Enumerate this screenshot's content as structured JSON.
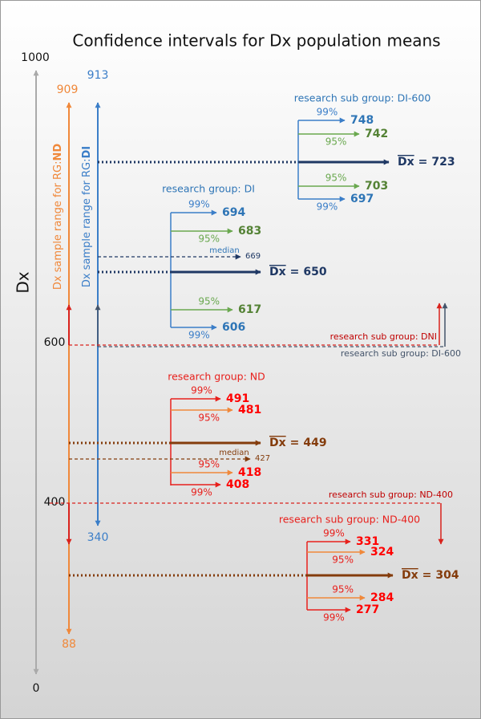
{
  "title": "Confidence intervals for Dx population means",
  "axis": {
    "label": "Dx",
    "ticks": [
      1000,
      600,
      400,
      0
    ]
  },
  "sample_ranges": [
    {
      "label": "Dx  sample range for RG:",
      "group": "ND",
      "max": 909,
      "min": 88
    },
    {
      "label": "Dx  sample range for RG:",
      "group": "DI",
      "max": 913,
      "min": 340
    }
  ],
  "mean_symbol": "Dx",
  "equals": "=",
  "median_label": "median",
  "groups": [
    {
      "title": "research sub group: DI-600",
      "mean": 723,
      "intervals": [
        {
          "level": "99%",
          "upper": 748,
          "lower": 697
        },
        {
          "level": "95%",
          "upper": 742,
          "lower": 703
        }
      ]
    },
    {
      "title": "research group: DI",
      "mean": 650,
      "median": 669,
      "intervals": [
        {
          "level": "99%",
          "upper": 694,
          "lower": 606
        },
        {
          "level": "95%",
          "upper": 683,
          "lower": 617
        }
      ]
    },
    {
      "title": "research group: ND",
      "mean": 449,
      "median": 427,
      "intervals": [
        {
          "level": "99%",
          "upper": 491,
          "lower": 408
        },
        {
          "level": "95%",
          "upper": 481,
          "lower": 418
        }
      ]
    },
    {
      "title": "research sub group: ND-400",
      "mean": 304,
      "intervals": [
        {
          "level": "99%",
          "upper": 331,
          "lower": 277
        },
        {
          "level": "95%",
          "upper": 324,
          "lower": 284
        }
      ]
    }
  ],
  "thresholds": [
    {
      "label": "research sub group: DNI"
    },
    {
      "label": "research sub group: DI-600"
    },
    {
      "label": "research sub group: ND-400"
    }
  ]
}
